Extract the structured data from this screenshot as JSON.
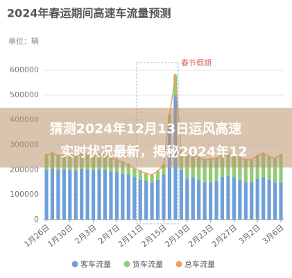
{
  "chart_data": {
    "type": "stacked-bar-line",
    "title": "2024年春运期间高速车流量预测",
    "unit_label": "单位：辆",
    "annotation": "春节假期",
    "categories": [
      "1月26日",
      null,
      null,
      null,
      "1月30日",
      null,
      null,
      null,
      "2月3日",
      null,
      null,
      null,
      "2月7日",
      null,
      null,
      null,
      "2月11日",
      null,
      null,
      null,
      "2月15日",
      null,
      null,
      null,
      "2月19日",
      null,
      null,
      null,
      "2月23日",
      null,
      null,
      null,
      "2月27日",
      null,
      null,
      null,
      "3月2日",
      null,
      null,
      null,
      "3月6日"
    ],
    "series": [
      {
        "name": "客车流量",
        "color": "#6f9fd8",
        "kind": "bar",
        "values": [
          200000,
          205000,
          198000,
          202000,
          200000,
          196000,
          204000,
          200000,
          198000,
          202000,
          200000,
          195000,
          190000,
          185000,
          180000,
          170000,
          160000,
          155000,
          150000,
          160000,
          180000,
          380000,
          500000,
          200000,
          165000,
          170000,
          160000,
          150000,
          150000,
          155000,
          170000,
          175000,
          170000,
          160000,
          150000,
          150000,
          165000,
          170000,
          160000,
          150000,
          150000
        ]
      },
      {
        "name": "货车流量",
        "color": "#91cc75",
        "kind": "bar",
        "values": [
          60000,
          62000,
          58000,
          60000,
          61000,
          59000,
          60000,
          62000,
          58000,
          60000,
          60000,
          55000,
          50000,
          45000,
          40000,
          35000,
          35000,
          30000,
          30000,
          35000,
          40000,
          40000,
          80000,
          70000,
          90000,
          92000,
          88000,
          90000,
          92000,
          90000,
          88000,
          90000,
          92000,
          88000,
          90000,
          90000,
          92000,
          95000,
          92000,
          95000,
          110000
        ]
      },
      {
        "name": "总车流量",
        "color": "#e9a066",
        "kind": "line",
        "values": [
          260000,
          267000,
          256000,
          262000,
          261000,
          255000,
          264000,
          262000,
          256000,
          262000,
          260000,
          250000,
          240000,
          230000,
          220000,
          205000,
          195000,
          185000,
          180000,
          195000,
          220000,
          420000,
          580000,
          270000,
          255000,
          262000,
          248000,
          240000,
          242000,
          245000,
          258000,
          265000,
          262000,
          248000,
          240000,
          240000,
          257000,
          265000,
          252000,
          245000,
          260000
        ]
      }
    ],
    "ylim": [
      0,
      600000
    ],
    "yticks": [
      0,
      100000,
      200000,
      300000,
      400000,
      500000,
      600000
    ],
    "grid": true,
    "legend": "bottom"
  },
  "overlay_text": [
    "猜测2024年12月13日运风高速",
    "实时状况最新，揭秘2024年12"
  ]
}
